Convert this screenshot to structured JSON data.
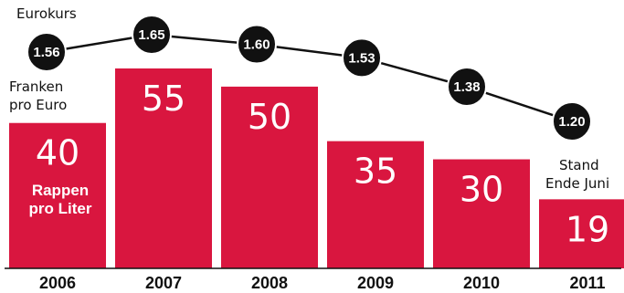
{
  "chart_data": {
    "type": "bar",
    "categories": [
      "2006",
      "2007",
      "2008",
      "2009",
      "2010",
      "2011"
    ],
    "series": [
      {
        "name": "Rappen pro Liter",
        "values": [
          40,
          55,
          50,
          35,
          30,
          19
        ]
      },
      {
        "name": "Eurokurs",
        "values": [
          1.56,
          1.65,
          1.6,
          1.53,
          1.38,
          1.2
        ]
      }
    ],
    "value_labels": [
      "40",
      "55",
      "50",
      "35",
      "30",
      "19"
    ],
    "line_labels": [
      "1.56",
      "1.65",
      "1.60",
      "1.53",
      "1.38",
      "1.20"
    ],
    "bar_unit_lines": [
      "Rappen",
      "pro Liter"
    ],
    "line_title": "Eurokurs",
    "line_unit_lines": [
      "Franken",
      "pro Euro"
    ],
    "last_note_lines": [
      "Stand",
      "Ende Juni"
    ],
    "ylim": [
      0,
      60
    ],
    "grid": false,
    "colors": {
      "bar": "#d9163f",
      "line": "#111111",
      "dot_text": "#ffffff",
      "bar_text": "#ffffff"
    }
  }
}
